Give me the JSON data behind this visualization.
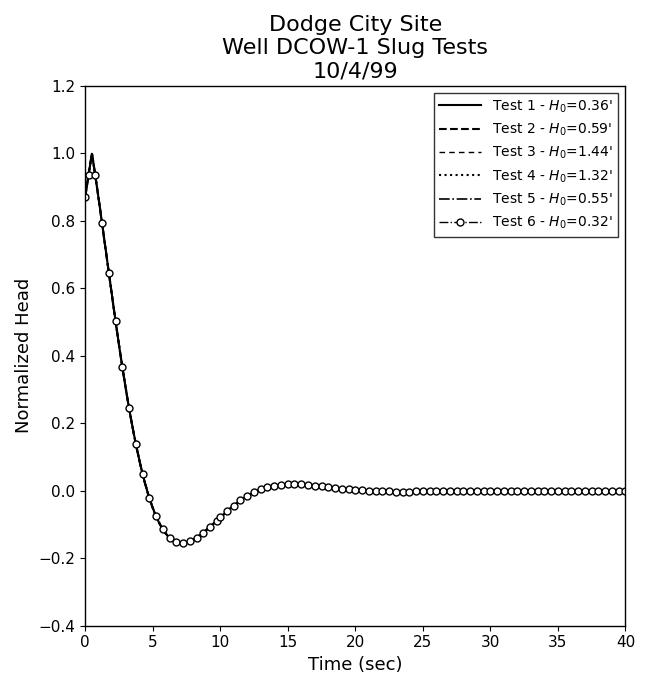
{
  "title": "Dodge City Site\nWell DCOW-1 Slug Tests\n10/4/99",
  "xlabel": "Time (sec)",
  "ylabel": "Normalized Head",
  "xlim": [
    0,
    40
  ],
  "ylim": [
    -0.4,
    1.2
  ],
  "xticks": [
    0,
    5,
    10,
    15,
    20,
    25,
    30,
    35,
    40
  ],
  "yticks": [
    -0.4,
    -0.2,
    0.0,
    0.2,
    0.4,
    0.6,
    0.8,
    1.0,
    1.2
  ],
  "legend_entries": [
    "Test 1 - $H_0$=0.36'",
    "Test 2 - $H_0$=0.59'",
    "Test 3 - $H_0$=1.44'",
    "Test 4 - $H_0$=1.32'",
    "Test 5 - $H_0$=0.55'",
    "Test 6 - $H_0$=0.32'"
  ],
  "background_color": "white",
  "title_fontsize": 16,
  "axis_fontsize": 13,
  "tick_fontsize": 11,
  "legend_fontsize": 10,
  "omega": 0.46,
  "zeta": 0.55,
  "t_shift": 0.5
}
